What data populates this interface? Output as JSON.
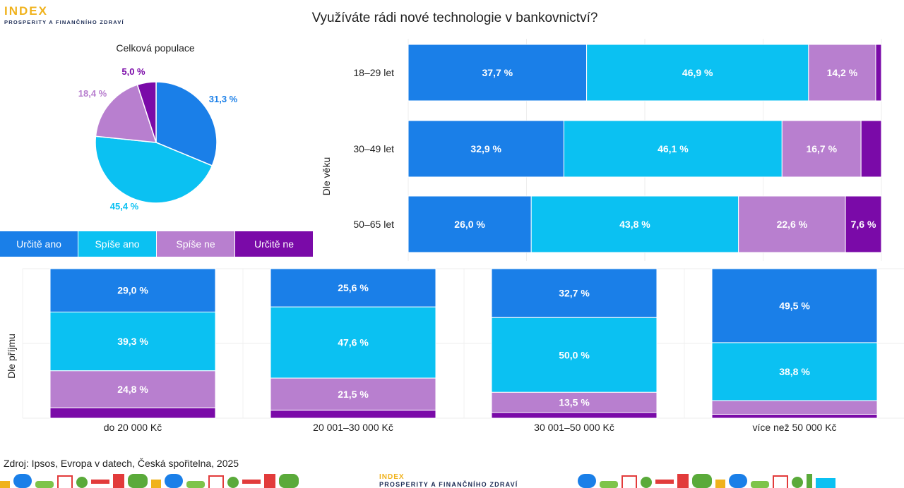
{
  "logo": {
    "line1": "INDEX",
    "line2": "PROSPERITY A FINANČNÍHO ZDRAVÍ"
  },
  "title": "Využíváte rádi nové technologie v bankovnictví?",
  "colors": {
    "urcite_ano": "#1a7fe8",
    "spise_ano": "#0bc1f2",
    "spise_ne": "#b87fcf",
    "urcite_ne": "#7a0aa8"
  },
  "legend": [
    "Určitě ano",
    "Spíše ano",
    "Spíše ne",
    "Určitě ne"
  ],
  "chart_data": [
    {
      "type": "pie",
      "title": "Celková populace",
      "categories": [
        "Určitě ano",
        "Spíše ano",
        "Spíše ne",
        "Určitě ne"
      ],
      "values": [
        31.3,
        45.4,
        18.4,
        5.0
      ],
      "labels": [
        "31,3 %",
        "45,4 %",
        "18,4 %",
        "5,0 %"
      ]
    },
    {
      "type": "bar",
      "orientation": "horizontal",
      "stacked": true,
      "axis_label": "Dle věku",
      "categories": [
        "18–29 let",
        "30–49 let",
        "50–65 let"
      ],
      "series": [
        {
          "name": "Určitě ano",
          "values": [
            37.7,
            32.9,
            26.0
          ],
          "labels": [
            "37,7 %",
            "32,9 %",
            "26,0 %"
          ]
        },
        {
          "name": "Spíše ano",
          "values": [
            46.9,
            46.1,
            43.8
          ],
          "labels": [
            "46,9 %",
            "46,1 %",
            "43,8 %"
          ]
        },
        {
          "name": "Spíše ne",
          "values": [
            14.2,
            16.7,
            22.6
          ],
          "labels": [
            "14,2 %",
            "16,7 %",
            "22,6 %"
          ]
        },
        {
          "name": "Určitě ne",
          "values": [
            1.2,
            4.3,
            7.6
          ],
          "labels": [
            "",
            "",
            "7,6 %"
          ]
        }
      ]
    },
    {
      "type": "bar",
      "orientation": "vertical",
      "stacked": true,
      "axis_label": "Dle příjmu",
      "categories": [
        "do 20 000 Kč",
        "20 001–30 000 Kč",
        "30 001–50 000 Kč",
        "více než 50 000 Kč"
      ],
      "series": [
        {
          "name": "Určitě ano",
          "values": [
            29.0,
            25.6,
            32.7,
            49.5
          ],
          "labels": [
            "29,0 %",
            "25,6 %",
            "32,7 %",
            "49,5 %"
          ]
        },
        {
          "name": "Spíše ano",
          "values": [
            39.3,
            47.6,
            50.0,
            38.8
          ],
          "labels": [
            "39,3 %",
            "47,6 %",
            "50,0 %",
            "38,8 %"
          ]
        },
        {
          "name": "Spíše ne",
          "values": [
            24.8,
            21.5,
            13.5,
            9.1
          ],
          "labels": [
            "24,8 %",
            "21,5 %",
            "13,5 %",
            ""
          ]
        },
        {
          "name": "Určitě ne",
          "values": [
            6.9,
            5.3,
            3.8,
            2.6
          ],
          "labels": [
            "",
            "",
            "",
            ""
          ]
        }
      ]
    }
  ],
  "source": "Zdroj: Ipsos, Evropa v datech, Česká spořitelna, 2025"
}
